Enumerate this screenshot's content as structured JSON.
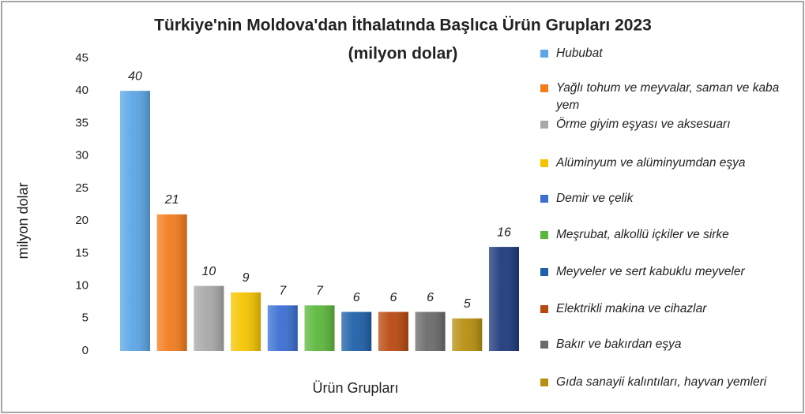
{
  "chart_data": {
    "type": "bar",
    "title": "Türkiye'nin Moldova'dan İthalatında Başlıca Ürün Grupları 2023",
    "subtitle": "(milyon dolar)",
    "y_label": "milyon dolar",
    "x_label": "Ürün Grupları",
    "categories": [
      "Hububat",
      "Yağlı tohum ve meyvalar, saman ve kaba yem",
      "Örme giyim eşyası ve aksesuarı",
      "Alüminyum ve alüminyumdan eşya",
      "Demir ve çelik",
      "Meşrubat, alkollü içkiler ve sirke",
      "Meyveler ve sert kabuklu meyveler",
      "Elektrikli makina ve cihazlar",
      "Bakır ve bakırdan eşya",
      "Gıda sanayii kalıntıları, hayvan yemleri",
      null
    ],
    "values": [
      40,
      21,
      10,
      9,
      7,
      7,
      6,
      6,
      6,
      5,
      16
    ],
    "colors": [
      "#5ba6e6",
      "#f37b1c",
      "#a8a8a8",
      "#f5c400",
      "#3b6fd3",
      "#5cb83c",
      "#1f60aa",
      "#b9480f",
      "#6b6b6b",
      "#b8900f",
      "#1e3a7c"
    ],
    "ylim": [
      0,
      45
    ],
    "yticks": [
      0,
      5,
      10,
      15,
      20,
      25,
      30,
      35,
      40,
      45
    ],
    "grid": false
  }
}
